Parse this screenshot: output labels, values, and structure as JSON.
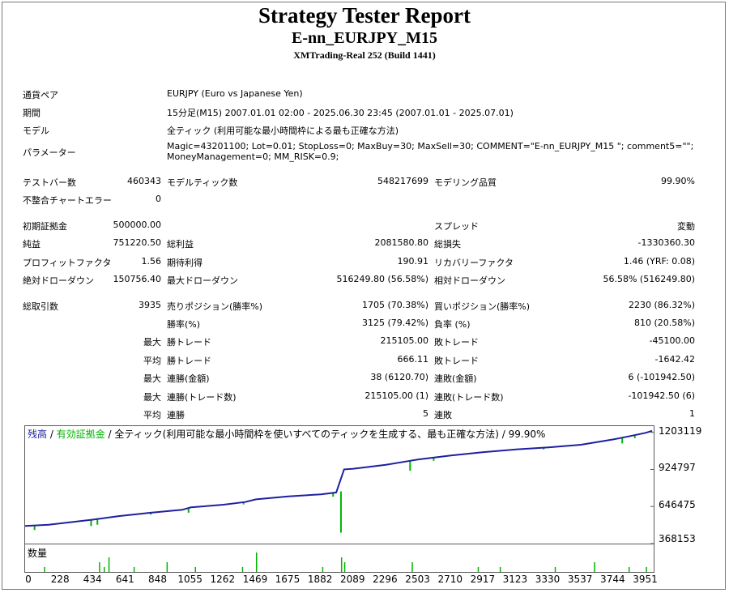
{
  "report": {
    "title": "Strategy Tester Report",
    "ea_name": "E-nn_EURJPY_M15",
    "server": "XMTrading-Real 252 (Build 1441)"
  },
  "info": {
    "symbol_label": "通貨ペア",
    "symbol_value": "EURJPY (Euro vs Japanese Yen)",
    "period_label": "期間",
    "period_value": "15分足(M15) 2007.01.01 02:00 - 2025.06.30 23:45 (2007.01.01 - 2025.07.01)",
    "model_label": "モデル",
    "model_value": "全ティック (利用可能な最小時間枠による最も正確な方法)",
    "params_label": "パラメーター",
    "params_line1": "Magic=43201100; Lot=0.01; StopLoss=0; MaxBuy=30; MaxSell=30; COMMENT=\"E-nn_EURJPY_M15 \"; comment5=\"\";",
    "params_line2": "MoneyManagement=0; MM_RISK=0.9;"
  },
  "stats": {
    "bars_label": "テストバー数",
    "bars_value": "460343",
    "ticks_label": "モデルティック数",
    "ticks_value": "548217699",
    "quality_label": "モデリング品質",
    "quality_value": "99.90%",
    "mismatch_label": "不整合チャートエラー",
    "mismatch_value": "0",
    "deposit_label": "初期証拠金",
    "deposit_value": "500000.00",
    "spread_label": "スプレッド",
    "spread_value": "変動",
    "net_label": "純益",
    "net_value": "751220.50",
    "gross_profit_label": "総利益",
    "gross_profit_value": "2081580.80",
    "gross_loss_label": "総損失",
    "gross_loss_value": "-1330360.30",
    "pf_label": "プロフィットファクタ",
    "pf_value": "1.56",
    "expected_label": "期待利得",
    "expected_value": "190.91",
    "recovery_label": "リカバリーファクタ",
    "recovery_value": "1.46 (YRF: 0.08)",
    "abs_dd_label": "絶対ドローダウン",
    "abs_dd_value": "150756.40",
    "max_dd_label": "最大ドローダウン",
    "max_dd_value": "516249.80 (56.58%)",
    "rel_dd_label": "相対ドローダウン",
    "rel_dd_value": "56.58% (516249.80)",
    "trades_label": "総取引数",
    "trades_value": "3935",
    "short_label": "売りポジション(勝率%)",
    "short_value": "1705 (70.38%)",
    "long_label": "買いポジション(勝率%)",
    "long_value": "2230 (86.32%)",
    "win_pct_label": "勝率(%)",
    "win_pct_value": "3125 (79.42%)",
    "loss_pct_label": "負率 (%)",
    "loss_pct_value": "810 (20.58%)",
    "max_label": "最大",
    "avg_label": "平均",
    "max_win_label": "勝トレード",
    "max_win_value": "215105.00",
    "max_loss_label": "敗トレード",
    "max_loss_value": "-45100.00",
    "avg_win_label": "勝トレード",
    "avg_win_value": "666.11",
    "avg_loss_label": "敗トレード",
    "avg_loss_value": "-1642.42",
    "cons_wins_label": "連勝(金額)",
    "cons_wins_value": "38 (6120.70)",
    "cons_losses_label": "連敗(金額)",
    "cons_losses_value": "6 (-101942.50)",
    "cons_profit_label": "連勝(トレード数)",
    "cons_profit_value": "215105.00 (1)",
    "cons_loss_label": "連敗(トレード数)",
    "cons_loss_value": "-101942.50 (6)",
    "avg_cons_win_label": "連勝",
    "avg_cons_win_value": "5",
    "avg_cons_loss_label": "連敗",
    "avg_cons_loss_value": "1"
  },
  "chart": {
    "legend_balance": "残高",
    "legend_sep1": " / ",
    "legend_equity": "有効証拠金",
    "legend_sep2": " / ",
    "legend_rest": "全ティック(利用可能な最小時間枠を使いすべてのティックを生成する、最も正確な方法) / 99.90%",
    "volume_label": "数量",
    "balance_color": "#1f1fa0",
    "equity_color": "#00b400",
    "volume_color": "#00b400"
  },
  "chart_data": {
    "type": "line",
    "title": "",
    "xlabel": "",
    "ylabel": "",
    "ylim": [
      368153,
      1250000
    ],
    "yticks": [
      "1203119",
      "924797",
      "646475",
      "368153"
    ],
    "ytick_values": [
      1203119,
      924797,
      646475,
      368153
    ],
    "xticks": [
      "0",
      "228",
      "434",
      "641",
      "848",
      "1055",
      "1262",
      "1469",
      "1675",
      "1882",
      "2089",
      "2296",
      "2503",
      "2710",
      "2917",
      "3123",
      "3330",
      "3537",
      "3744",
      "3951"
    ],
    "xtick_values": [
      0,
      228,
      434,
      641,
      848,
      1055,
      1262,
      1469,
      1675,
      1882,
      2089,
      2296,
      2503,
      2710,
      2917,
      3123,
      3330,
      3537,
      3744,
      3951
    ],
    "xlim": [
      0,
      4000
    ],
    "series": [
      {
        "name": "残高",
        "x": [
          0,
          150,
          300,
          434,
          600,
          800,
          1000,
          1055,
          1262,
          1400,
          1469,
          1675,
          1882,
          1980,
          2030,
          2089,
          2296,
          2450,
          2503,
          2710,
          2917,
          3123,
          3330,
          3537,
          3744,
          3850,
          3951,
          3990
        ],
        "values": [
          500000,
          510000,
          530000,
          548000,
          575000,
          600000,
          622000,
          640000,
          660000,
          680000,
          700000,
          722000,
          738000,
          752000,
          925000,
          930000,
          960000,
          990000,
          1000000,
          1030000,
          1055000,
          1075000,
          1090000,
          1110000,
          1150000,
          1175000,
          1200000,
          1215000
        ]
      }
    ],
    "equity_dips": [
      {
        "x": 60,
        "values": [
          500000,
          470000
        ]
      },
      {
        "x": 420,
        "values": [
          545000,
          500000
        ]
      },
      {
        "x": 460,
        "values": [
          550000,
          510000
        ]
      },
      {
        "x": 800,
        "values": [
          600000,
          585000
        ]
      },
      {
        "x": 1040,
        "values": [
          635000,
          600000
        ]
      },
      {
        "x": 1390,
        "values": [
          680000,
          662000
        ]
      },
      {
        "x": 1960,
        "values": [
          750000,
          720000
        ]
      },
      {
        "x": 2010,
        "values": [
          760000,
          450000
        ]
      },
      {
        "x": 2450,
        "values": [
          990000,
          915000
        ]
      },
      {
        "x": 2600,
        "values": [
          1010000,
          990000
        ]
      },
      {
        "x": 3300,
        "values": [
          1090000,
          1075000
        ]
      },
      {
        "x": 3800,
        "values": [
          1160000,
          1120000
        ]
      },
      {
        "x": 3880,
        "values": [
          1180000,
          1160000
        ]
      }
    ],
    "volume": {
      "x": [
        120,
        470,
        500,
        530,
        690,
        900,
        1080,
        1380,
        1469,
        1890,
        2010,
        2030,
        2460,
        2880,
        3020,
        3370,
        3620,
        3840,
        3950
      ],
      "values": [
        1,
        2,
        1,
        3,
        1,
        2,
        1,
        1,
        4,
        1,
        3,
        2,
        2,
        1,
        1,
        1,
        2,
        1,
        1
      ]
    }
  }
}
